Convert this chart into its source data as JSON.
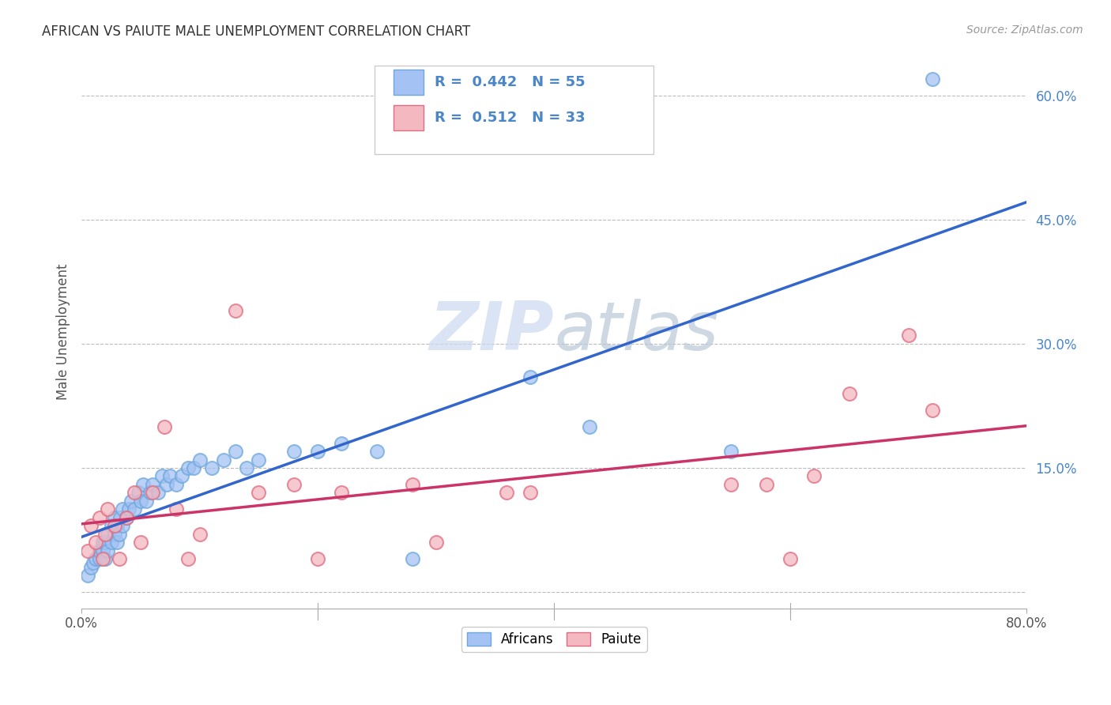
{
  "title": "AFRICAN VS PAIUTE MALE UNEMPLOYMENT CORRELATION CHART",
  "source": "Source: ZipAtlas.com",
  "ylabel": "Male Unemployment",
  "xlim": [
    0,
    0.8
  ],
  "ylim": [
    -0.02,
    0.65
  ],
  "yticks": [
    0.0,
    0.15,
    0.3,
    0.45,
    0.6
  ],
  "ytick_labels": [
    "",
    "15.0%",
    "30.0%",
    "45.0%",
    "60.0%"
  ],
  "xticks": [
    0.0,
    0.2,
    0.4,
    0.6,
    0.8
  ],
  "xtick_labels": [
    "0.0%",
    "",
    "",
    "",
    "80.0%"
  ],
  "african_R": 0.442,
  "african_N": 55,
  "paiute_R": 0.512,
  "paiute_N": 33,
  "african_color": "#a4c2f4",
  "african_edge_color": "#6fa8dc",
  "african_line_color": "#3366cc",
  "paiute_color": "#f4b8c1",
  "paiute_edge_color": "#e06c80",
  "paiute_line_color": "#cc3366",
  "grid_color": "#bbbbbb",
  "background_color": "#ffffff",
  "tick_color": "#4a86c8",
  "watermark_color": "#ccd9f0",
  "legend_label_african": "Africans",
  "legend_label_paiute": "Paiute",
  "african_x": [
    0.005,
    0.008,
    0.01,
    0.012,
    0.015,
    0.015,
    0.018,
    0.018,
    0.02,
    0.02,
    0.022,
    0.022,
    0.025,
    0.025,
    0.028,
    0.028,
    0.03,
    0.03,
    0.032,
    0.033,
    0.035,
    0.035,
    0.038,
    0.04,
    0.042,
    0.045,
    0.048,
    0.05,
    0.052,
    0.055,
    0.058,
    0.06,
    0.065,
    0.068,
    0.072,
    0.075,
    0.08,
    0.085,
    0.09,
    0.095,
    0.1,
    0.11,
    0.12,
    0.13,
    0.14,
    0.15,
    0.18,
    0.2,
    0.22,
    0.25,
    0.28,
    0.38,
    0.43,
    0.55,
    0.72
  ],
  "african_y": [
    0.02,
    0.03,
    0.035,
    0.04,
    0.04,
    0.05,
    0.05,
    0.06,
    0.04,
    0.06,
    0.05,
    0.07,
    0.06,
    0.08,
    0.07,
    0.09,
    0.06,
    0.08,
    0.07,
    0.09,
    0.08,
    0.1,
    0.09,
    0.1,
    0.11,
    0.1,
    0.12,
    0.11,
    0.13,
    0.11,
    0.12,
    0.13,
    0.12,
    0.14,
    0.13,
    0.14,
    0.13,
    0.14,
    0.15,
    0.15,
    0.16,
    0.15,
    0.16,
    0.17,
    0.15,
    0.16,
    0.17,
    0.17,
    0.18,
    0.17,
    0.04,
    0.26,
    0.2,
    0.17,
    0.62
  ],
  "paiute_x": [
    0.005,
    0.008,
    0.012,
    0.015,
    0.018,
    0.02,
    0.022,
    0.028,
    0.032,
    0.038,
    0.045,
    0.05,
    0.06,
    0.07,
    0.08,
    0.09,
    0.1,
    0.13,
    0.15,
    0.18,
    0.2,
    0.22,
    0.28,
    0.3,
    0.36,
    0.38,
    0.55,
    0.58,
    0.6,
    0.62,
    0.65,
    0.7,
    0.72
  ],
  "paiute_y": [
    0.05,
    0.08,
    0.06,
    0.09,
    0.04,
    0.07,
    0.1,
    0.08,
    0.04,
    0.09,
    0.12,
    0.06,
    0.12,
    0.2,
    0.1,
    0.04,
    0.07,
    0.34,
    0.12,
    0.13,
    0.04,
    0.12,
    0.13,
    0.06,
    0.12,
    0.12,
    0.13,
    0.13,
    0.04,
    0.14,
    0.24,
    0.31,
    0.22
  ]
}
